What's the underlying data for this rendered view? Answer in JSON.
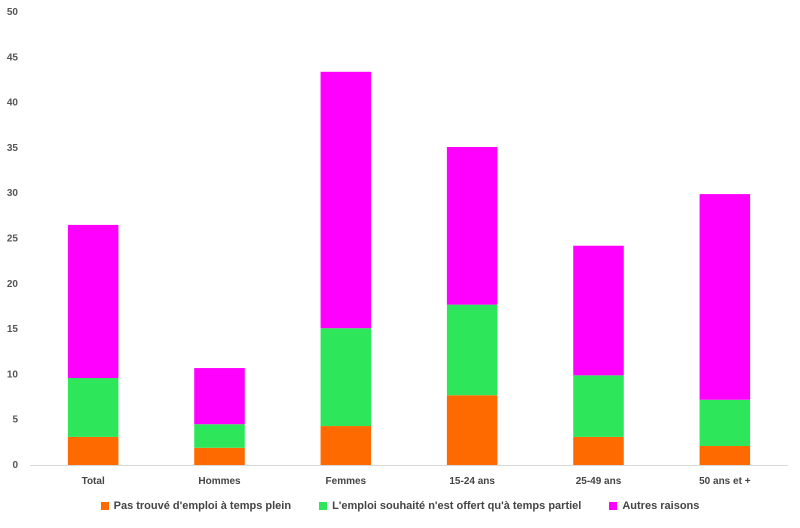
{
  "chart_data": {
    "type": "bar",
    "stacked": true,
    "categories": [
      "Total",
      "Hommes",
      "Femmes",
      "15-24 ans",
      "25-49 ans",
      "50 ans et +"
    ],
    "series": [
      {
        "name": "Pas trouvé d'emploi à temps plein",
        "color": "#ff6a00",
        "values": [
          3.1,
          1.9,
          4.3,
          7.7,
          3.1,
          2.1
        ]
      },
      {
        "name": "L'emploi souhaité n'est offert qu'à temps partiel",
        "color": "#2ee65a",
        "values": [
          6.5,
          2.6,
          10.8,
          10.0,
          6.8,
          5.1
        ]
      },
      {
        "name": "Autres raisons",
        "color": "#ff00ff",
        "values": [
          16.9,
          6.2,
          28.3,
          17.4,
          14.3,
          22.7
        ]
      }
    ],
    "ylim": [
      0,
      50
    ],
    "yticks": [
      0,
      5,
      10,
      15,
      20,
      25,
      30,
      35,
      40,
      45,
      50
    ],
    "grid": false,
    "legend_position": "bottom"
  }
}
